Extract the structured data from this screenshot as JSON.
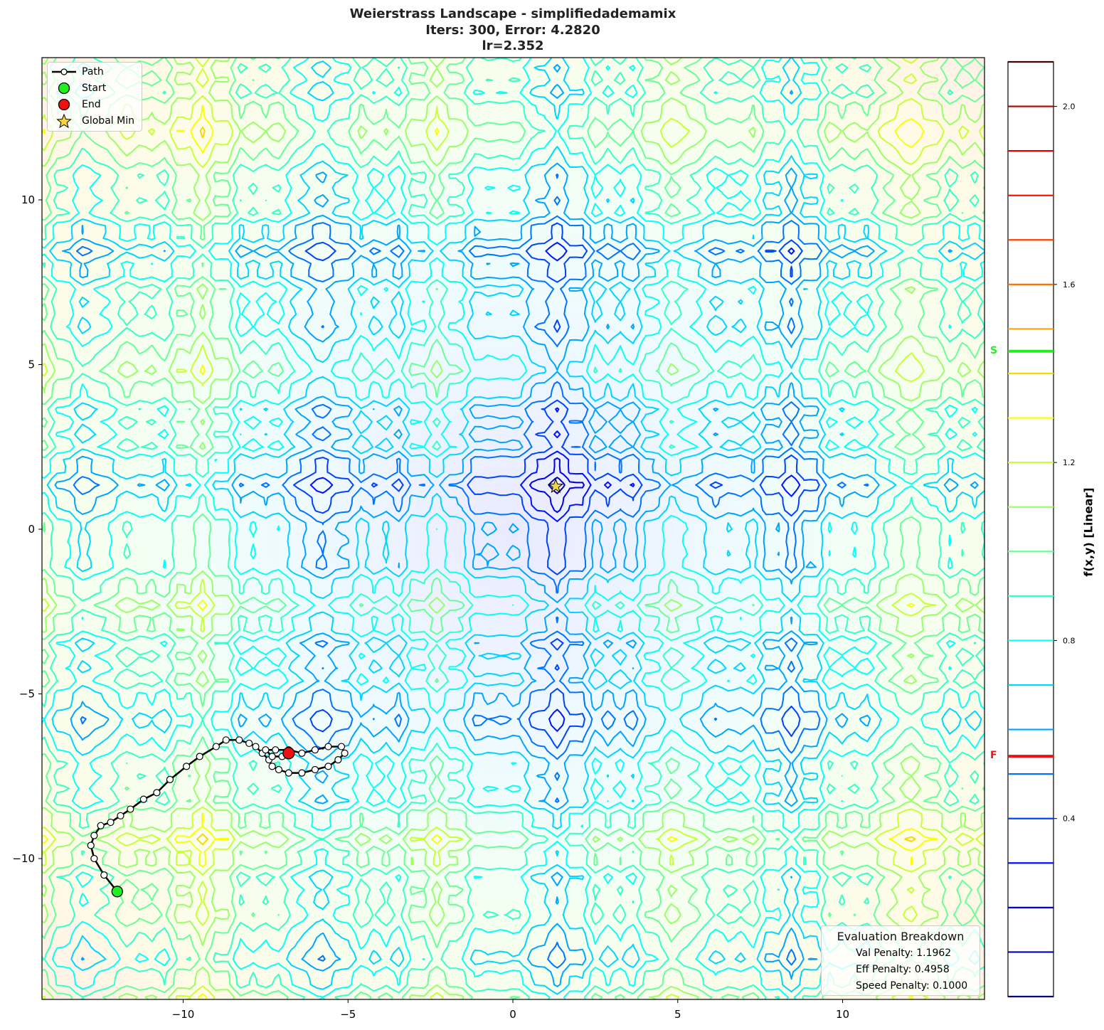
{
  "chart_data": {
    "type": "contour",
    "title": "Weierstrass Landscape - simplifiedademamix",
    "subtitle_lines": [
      "Iters: 300, Error: 4.2820",
      "lr=2.352"
    ],
    "xlabel": "",
    "ylabel": "",
    "xlim": [
      -14.3,
      14.3
    ],
    "ylim": [
      -14.3,
      14.3
    ],
    "xticks": [
      -10,
      -5,
      0,
      5,
      10
    ],
    "yticks": [
      -10,
      -5,
      0,
      5,
      10
    ],
    "xtick_labels": [
      "−10",
      "−5",
      "0",
      "5",
      "10"
    ],
    "ytick_labels": [
      "−10",
      "−5",
      "0",
      "5",
      "10"
    ],
    "grid": false,
    "colormap": "jet",
    "colorbar": {
      "label": "f(x,y) [Linear]",
      "range": [
        0.0,
        2.1
      ],
      "ticks": [
        0.4,
        0.8,
        1.2,
        1.6,
        2.0
      ],
      "tick_labels": [
        "0.4",
        "0.8",
        "1.2",
        "1.6",
        "2.0"
      ],
      "levels": [
        0.1,
        0.2,
        0.3,
        0.4,
        0.5,
        0.6,
        0.7,
        0.8,
        0.9,
        1.0,
        1.1,
        1.2,
        1.3,
        1.4,
        1.5,
        1.6,
        1.7,
        1.8,
        1.9,
        2.0,
        2.1
      ],
      "markers": [
        {
          "label": "S",
          "value": 1.45,
          "color": "#22ee22"
        },
        {
          "label": "F",
          "value": 0.54,
          "color": "#ee1111"
        }
      ]
    },
    "global_min": {
      "x": 1.3,
      "y": 1.3
    },
    "start": {
      "x": -12.0,
      "y": -11.0
    },
    "end": {
      "x": -6.8,
      "y": -6.8
    },
    "path": [
      [
        -12.0,
        -11.0
      ],
      [
        -12.4,
        -10.5
      ],
      [
        -12.7,
        -10.0
      ],
      [
        -12.8,
        -9.6
      ],
      [
        -12.7,
        -9.3
      ],
      [
        -12.5,
        -9.0
      ],
      [
        -12.2,
        -8.9
      ],
      [
        -11.9,
        -8.7
      ],
      [
        -11.6,
        -8.5
      ],
      [
        -11.2,
        -8.2
      ],
      [
        -10.8,
        -8.0
      ],
      [
        -10.4,
        -7.6
      ],
      [
        -9.9,
        -7.2
      ],
      [
        -9.5,
        -6.9
      ],
      [
        -9.0,
        -6.6
      ],
      [
        -8.7,
        -6.4
      ],
      [
        -8.3,
        -6.4
      ],
      [
        -8.0,
        -6.5
      ],
      [
        -7.8,
        -6.6
      ],
      [
        -7.6,
        -6.8
      ],
      [
        -7.4,
        -7.0
      ],
      [
        -7.3,
        -7.2
      ],
      [
        -7.1,
        -7.3
      ],
      [
        -6.8,
        -7.4
      ],
      [
        -6.4,
        -7.4
      ],
      [
        -6.0,
        -7.3
      ],
      [
        -5.6,
        -7.2
      ],
      [
        -5.3,
        -7.0
      ],
      [
        -5.1,
        -6.8
      ],
      [
        -5.2,
        -6.6
      ],
      [
        -5.6,
        -6.6
      ],
      [
        -6.0,
        -6.7
      ],
      [
        -6.4,
        -6.8
      ],
      [
        -6.8,
        -6.7
      ],
      [
        -7.2,
        -6.7
      ],
      [
        -7.5,
        -6.7
      ],
      [
        -7.3,
        -6.9
      ],
      [
        -7.0,
        -6.9
      ],
      [
        -6.8,
        -6.8
      ]
    ],
    "legend": {
      "position": "upper left",
      "entries": [
        "Path",
        "Start",
        "End",
        "Global Min"
      ]
    },
    "annotation_box": {
      "title": "Evaluation Breakdown",
      "lines": [
        "Val Penalty: 1.1962",
        "Eff Penalty: 0.4958",
        "Speed Penalty: 0.1000"
      ]
    }
  },
  "header": {
    "title": "Weierstrass Landscape - simplifiedademamix",
    "line2": "Iters: 300, Error: 4.2820",
    "line3": "lr=2.352"
  },
  "legend": {
    "path": "Path",
    "start": "Start",
    "end": "End",
    "global_min": "Global Min"
  },
  "evaluation": {
    "title": "Evaluation Breakdown",
    "val_penalty": "Val Penalty: 1.1962",
    "eff_penalty": "Eff Penalty: 0.4958",
    "speed_penalty": "Speed Penalty: 0.1000"
  },
  "colorbar": {
    "label": "f(x,y) [Linear]",
    "marker_s": "S",
    "marker_f": "F"
  },
  "colors": {
    "start": "#22ee22",
    "end": "#ee1111",
    "star": "#f5d442",
    "path": "#000000"
  }
}
